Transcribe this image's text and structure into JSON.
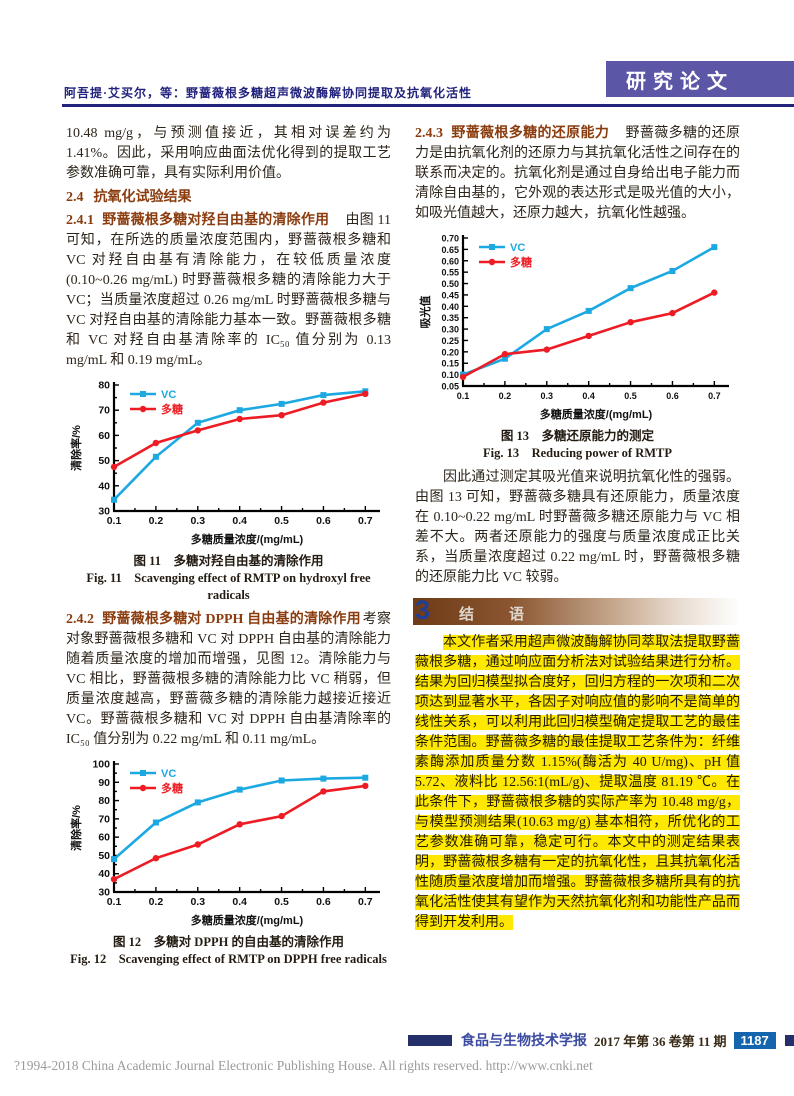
{
  "header": {
    "running_title": "阿吾提·艾买尔，等：野蔷薇根多糖超声微波酶解协同提取及抗氧化活性",
    "badge": "研究论文"
  },
  "left": {
    "para1": "10.48 mg/g，与预测值接近，其相对误差约为 1.41%。因此，采用响应曲面法优化得到的提取工艺参数准确可靠，具有实际利用价值。",
    "h24_num": "2.4",
    "h24_title": "抗氧化试验结果",
    "h241_num": "2.4.1",
    "h241_title": "野蔷薇根多糖对羟自由基的清除作用",
    "para241": "　由图 11 可知，在所选的质量浓度范围内，野蔷薇根多糖和VC 对羟自由基有清除能力，在较低质量浓度(0.10~0.26 mg/mL) 时野蔷薇根多糖的清除能力大于 VC；当质量浓度超过 0.26 mg/mL 时野蔷薇根多糖与 VC 对羟自由基的清除能力基本一致。野蔷薇根多糖和 VC 对羟自由基清除率的 IC₅₀ 值分别为 0.13 mg/mL 和 0.19 mg/mL。",
    "fig11_cn": "图 11　多糖对羟自由基的清除作用",
    "fig11_en": "Fig. 11　Scavenging effect of RMTP on hydroxyl free radicals",
    "h242_num": "2.4.2",
    "h242_title": "野蔷薇根多糖对 DPPH 自由基的清除作用",
    "para242": "考察对象野蔷薇根多糖和 VC 对 DPPH 自由基的清除能力随着质量浓度的增加而增强，见图 12。清除能力与 VC 相比，野蔷薇根多糖的清除能力比 VC 稍弱，但质量浓度越高，野蔷薇多糖的清除能力越接近接近 VC。野蔷薇根多糖和 VC 对 DPPH 自由基清除率的 IC₅₀ 值分别为 0.22 mg/mL 和 0.11 mg/mL。",
    "fig12_cn": "图 12　多糖对 DPPH 的自由基的清除作用",
    "fig12_en": "Fig. 12　Scavenging effect of RMTP on DPPH free radicals"
  },
  "right": {
    "h243_num": "2.4.3",
    "h243_title": "野蔷薇根多糖的还原能力",
    "para243": "　野蔷薇多糖的还原力是由抗氧化剂的还原力与其抗氧化活性之间存在的联系而决定的。抗氧化剂是通过自身给出电子能力而清除自由基的，它外观的表达形式是吸光值的大小，如吸光值越大，还原力越大，抗氧化性越强。",
    "fig13_cn": "图 13　多糖还原能力的测定",
    "fig13_en": "Fig. 13　Reducing power of RMTP",
    "para_fig13": "因此通过测定其吸光值来说明抗氧化性的强弱。由图 13 可知，野蔷薇多糖具有还原能力，质量浓度在 0.10~0.22 mg/mL 时野蔷薇多糖还原能力与 VC 相差不大。两者还原能力的强度与质量浓度成正比关系，当质量浓度超过 0.22 mg/mL 时，野蔷薇根多糖的还原能力比 VC 较弱。",
    "h3_num": "3",
    "h3_title": "结　语",
    "conclusion": "本文作者采用超声微波酶解协同萃取法提取野蔷薇根多糖，通过响应面分析法对试验结果进行分析。结果为回归模型拟合度好，回归方程的一次项和二次项达到显著水平，各因子对响应值的影响不是简单的线性关系，可以利用此回归模型确定提取工艺的最佳条件范围。野蔷薇多糖的最佳提取工艺条件为：纤维素酶添加质量分数 1.15%(酶活为 40 U/mg)、pH 值 5.72、液料比 12.56:1(mL/g)、提取温度 81.19 ℃。在此条件下，野蔷薇根多糖的实际产率为 10.48 mg/g，与模型预测结果(10.63 mg/g) 基本相符，所优化的工艺参数准确可靠，稳定可行。本文中的测定结果表明，野蔷薇根多糖有一定的抗氧化性，且其抗氧化活性随质量浓度增加而增强。野蔷薇根多糖所具有的抗氧化活性使其有望作为天然抗氧化剂和功能性产品而得到开发利用。"
  },
  "footer": {
    "journal": "食品与生物技术学报",
    "issue": "2017 年第 36 卷第 11 期",
    "page": "1187",
    "copyright": "?1994-2018 China Academic Journal Electronic Publishing House. All rights reserved.    http://www.cnki.net"
  },
  "colors": {
    "vc_blue": "#1ca9e1",
    "polysaccharide_red": "#ed1c24",
    "heading_brown": "#8a3c0e",
    "badge_purple": "#5b56a6",
    "highlight_yellow": "#ffe800",
    "page_box_blue": "#1565ae"
  },
  "chart_data": [
    {
      "type": "line",
      "title": "图 11 多糖对羟自由基的清除作用",
      "x": [
        0.1,
        0.2,
        0.3,
        0.4,
        0.5,
        0.6,
        0.7
      ],
      "series": [
        {
          "name": "VC",
          "color": "#1ca9e1",
          "marker": "square",
          "values": [
            34.5,
            51.5,
            65,
            70,
            72.5,
            76,
            77.5
          ]
        },
        {
          "name": "多糖",
          "color": "#ed1c24",
          "marker": "circle",
          "values": [
            47.5,
            57,
            62,
            66.5,
            68,
            73,
            76.5
          ]
        }
      ],
      "xlabel": "多糖质量浓度/(mg/mL)",
      "ylabel": "清除率/%",
      "xlim": [
        0.1,
        0.735
      ],
      "ylim": [
        30,
        80
      ],
      "ystep": 10,
      "ydecimals": 0,
      "yminor": true,
      "xticks": [
        0.1,
        0.2,
        0.3,
        0.4,
        0.5,
        0.6,
        0.7
      ],
      "legend_position": "top-left",
      "grid": false,
      "ticksize": 10.5
    },
    {
      "type": "line",
      "title": "图 12 多糖对 DPPH 的自由基的清除作用",
      "x": [
        0.1,
        0.2,
        0.3,
        0.4,
        0.5,
        0.6,
        0.7
      ],
      "series": [
        {
          "name": "VC",
          "color": "#1ca9e1",
          "marker": "square",
          "values": [
            48,
            68,
            79,
            86,
            91,
            92,
            92.5
          ]
        },
        {
          "name": "多糖",
          "color": "#ed1c24",
          "marker": "circle",
          "values": [
            37,
            48.5,
            56,
            67,
            71.5,
            85,
            88
          ]
        }
      ],
      "xlabel": "多糖质量浓度/(mg/mL)",
      "ylabel": "清除率/%",
      "xlim": [
        0.1,
        0.735
      ],
      "ylim": [
        30,
        100
      ],
      "ystep": 10,
      "ydecimals": 0,
      "yminor": true,
      "xticks": [
        0.1,
        0.2,
        0.3,
        0.4,
        0.5,
        0.6,
        0.7
      ],
      "legend_position": "top-left",
      "grid": false,
      "ticksize": 10.5
    },
    {
      "type": "line",
      "title": "图 13 多糖还原能力的测定",
      "x": [
        0.1,
        0.2,
        0.3,
        0.4,
        0.5,
        0.6,
        0.7
      ],
      "series": [
        {
          "name": "VC",
          "color": "#1ca9e1",
          "marker": "square",
          "values": [
            0.1,
            0.17,
            0.3,
            0.38,
            0.48,
            0.555,
            0.66
          ]
        },
        {
          "name": "多糖",
          "color": "#ed1c24",
          "marker": "circle",
          "values": [
            0.09,
            0.19,
            0.21,
            0.27,
            0.33,
            0.37,
            0.46
          ]
        }
      ],
      "xlabel": "多糖质量浓度/(mg/mL)",
      "ylabel": "吸光值",
      "xlim": [
        0.1,
        0.735
      ],
      "ylim": [
        0.05,
        0.7
      ],
      "ystep": 0.05,
      "ydecimals": 2,
      "yminor": false,
      "xticks": [
        0.1,
        0.2,
        0.3,
        0.4,
        0.5,
        0.6,
        0.7
      ],
      "legend_position": "top-left",
      "grid": false,
      "ticksize": 9
    }
  ]
}
